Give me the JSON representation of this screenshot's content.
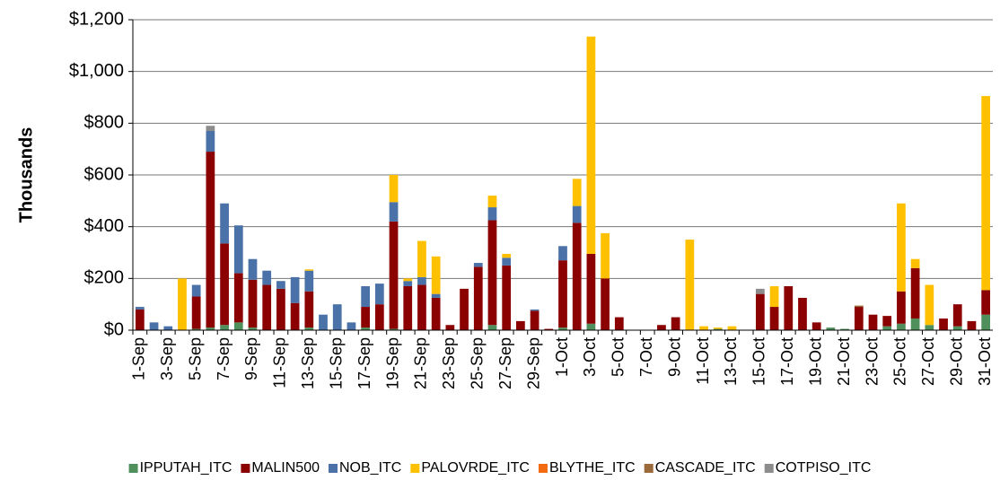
{
  "chart_data": {
    "type": "bar",
    "stacked": true,
    "y_label": "Thousands",
    "categories": [
      "1-Sep",
      null,
      "3-Sep",
      null,
      "5-Sep",
      null,
      "7-Sep",
      null,
      "9-Sep",
      null,
      "11-Sep",
      null,
      "13-Sep",
      null,
      "15-Sep",
      null,
      "17-Sep",
      null,
      "19-Sep",
      null,
      "21-Sep",
      null,
      "23-Sep",
      null,
      "25-Sep",
      null,
      "27-Sep",
      null,
      "29-Sep",
      null,
      "1-Oct",
      null,
      "3-Oct",
      null,
      "5-Oct",
      null,
      "7-Oct",
      null,
      "9-Oct",
      null,
      "11-Oct",
      null,
      "13-Oct",
      null,
      "15-Oct",
      null,
      "17-Oct",
      null,
      "19-Oct",
      null,
      "21-Oct",
      null,
      "23-Oct",
      null,
      "25-Oct",
      null,
      "27-Oct",
      null,
      "29-Oct",
      null,
      "31-Oct"
    ],
    "series": [
      {
        "name": "IPPUTAH_ITC",
        "color": "#4f8f5b",
        "values": [
          0,
          0,
          0,
          0,
          5,
          10,
          20,
          30,
          10,
          0,
          0,
          0,
          10,
          0,
          0,
          0,
          10,
          0,
          5,
          0,
          0,
          0,
          0,
          0,
          0,
          20,
          0,
          0,
          0,
          0,
          10,
          0,
          25,
          0,
          0,
          0,
          0,
          0,
          0,
          0,
          0,
          5,
          0,
          0,
          0,
          0,
          0,
          0,
          0,
          10,
          5,
          0,
          0,
          15,
          25,
          45,
          20,
          0,
          15,
          0,
          60
        ]
      },
      {
        "name": "MALIN500",
        "color": "#8b0000",
        "values": [
          80,
          0,
          0,
          0,
          125,
          680,
          315,
          190,
          185,
          175,
          160,
          105,
          140,
          0,
          0,
          0,
          80,
          100,
          415,
          170,
          175,
          125,
          20,
          160,
          245,
          405,
          250,
          35,
          75,
          5,
          260,
          415,
          270,
          200,
          50,
          0,
          0,
          20,
          50,
          0,
          0,
          0,
          0,
          0,
          140,
          90,
          170,
          125,
          30,
          0,
          0,
          90,
          60,
          40,
          125,
          195,
          0,
          45,
          85,
          35,
          95
        ]
      },
      {
        "name": "NOB_ITC",
        "color": "#4a72a8",
        "values": [
          10,
          30,
          15,
          0,
          45,
          80,
          155,
          185,
          80,
          55,
          30,
          100,
          80,
          60,
          100,
          30,
          80,
          80,
          75,
          20,
          30,
          15,
          0,
          0,
          15,
          50,
          30,
          0,
          5,
          0,
          55,
          65,
          0,
          0,
          0,
          0,
          0,
          0,
          0,
          0,
          0,
          0,
          0,
          0,
          0,
          0,
          0,
          0,
          0,
          0,
          0,
          0,
          0,
          0,
          0,
          0,
          0,
          0,
          0,
          0,
          0
        ]
      },
      {
        "name": "PALOVRDE_ITC",
        "color": "#ffc000",
        "values": [
          0,
          0,
          0,
          200,
          0,
          0,
          0,
          0,
          0,
          0,
          0,
          0,
          5,
          0,
          0,
          0,
          0,
          0,
          105,
          10,
          140,
          145,
          0,
          0,
          0,
          45,
          15,
          0,
          0,
          0,
          0,
          105,
          840,
          175,
          0,
          0,
          0,
          0,
          0,
          350,
          15,
          5,
          15,
          0,
          0,
          80,
          0,
          0,
          0,
          0,
          0,
          0,
          0,
          0,
          340,
          35,
          155,
          0,
          0,
          0,
          750
        ]
      },
      {
        "name": "BLYTHE_ITC",
        "color": "#f26b10",
        "values": [
          0,
          0,
          0,
          0,
          0,
          0,
          0,
          0,
          0,
          0,
          0,
          0,
          0,
          0,
          0,
          0,
          0,
          0,
          0,
          0,
          0,
          0,
          0,
          0,
          0,
          0,
          0,
          0,
          0,
          0,
          0,
          0,
          0,
          0,
          0,
          0,
          0,
          0,
          0,
          0,
          0,
          0,
          0,
          0,
          0,
          0,
          0,
          0,
          0,
          0,
          0,
          0,
          0,
          0,
          0,
          0,
          0,
          0,
          0,
          0,
          0
        ]
      },
      {
        "name": "CASCADE_ITC",
        "color": "#9a6a3a",
        "values": [
          0,
          0,
          0,
          0,
          0,
          0,
          0,
          0,
          0,
          0,
          0,
          0,
          0,
          0,
          0,
          0,
          0,
          0,
          0,
          0,
          0,
          0,
          0,
          0,
          0,
          0,
          0,
          0,
          0,
          0,
          0,
          0,
          0,
          0,
          0,
          0,
          0,
          0,
          0,
          0,
          0,
          0,
          0,
          0,
          0,
          0,
          0,
          0,
          0,
          0,
          0,
          5,
          0,
          0,
          0,
          0,
          0,
          0,
          0,
          0,
          0
        ]
      },
      {
        "name": "COTPISO_ITC",
        "color": "#8c8c8c",
        "values": [
          0,
          0,
          0,
          0,
          0,
          20,
          0,
          0,
          0,
          0,
          0,
          0,
          0,
          0,
          0,
          0,
          0,
          0,
          0,
          0,
          0,
          0,
          0,
          0,
          0,
          0,
          0,
          0,
          0,
          0,
          0,
          0,
          0,
          0,
          0,
          0,
          0,
          0,
          0,
          0,
          0,
          0,
          0,
          0,
          20,
          0,
          0,
          0,
          0,
          0,
          0,
          0,
          0,
          0,
          0,
          0,
          0,
          0,
          0,
          0,
          0
        ]
      }
    ],
    "ylim": [
      0,
      1200
    ],
    "yticks": [
      {
        "value": 0,
        "label": "$0"
      },
      {
        "value": 200,
        "label": "$200"
      },
      {
        "value": 400,
        "label": "$400"
      },
      {
        "value": 600,
        "label": "$600"
      },
      {
        "value": 800,
        "label": "$800"
      },
      {
        "value": 1000,
        "label": "$1,000"
      },
      {
        "value": 1200,
        "label": "$1,200"
      }
    ],
    "grid": true,
    "legend": "bottom"
  }
}
